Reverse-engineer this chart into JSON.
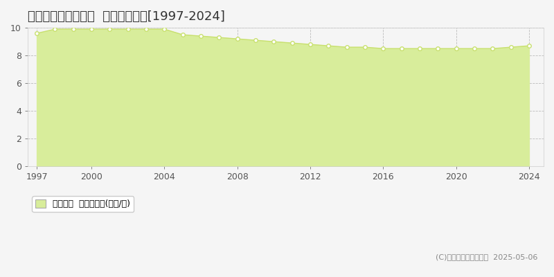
{
  "title": "東諸県郡国富町木脇  基準地価推移[1997-2024]",
  "years": [
    1997,
    1998,
    1999,
    2000,
    2001,
    2002,
    2003,
    2004,
    2005,
    2006,
    2007,
    2008,
    2009,
    2010,
    2011,
    2012,
    2013,
    2014,
    2015,
    2016,
    2017,
    2018,
    2019,
    2020,
    2021,
    2022,
    2023,
    2024
  ],
  "values": [
    9.6,
    9.9,
    9.9,
    9.9,
    9.9,
    9.9,
    9.9,
    9.9,
    9.5,
    9.4,
    9.3,
    9.2,
    9.1,
    9.0,
    8.9,
    8.8,
    8.7,
    8.6,
    8.6,
    8.5,
    8.5,
    8.5,
    8.5,
    8.5,
    8.5,
    8.5,
    8.6,
    8.7
  ],
  "ylim": [
    0,
    10
  ],
  "yticks": [
    0,
    2,
    4,
    6,
    8,
    10
  ],
  "xticks": [
    1997,
    2000,
    2004,
    2008,
    2012,
    2016,
    2020,
    2024
  ],
  "line_color": "#c8e06e",
  "fill_color": "#d8ed9b",
  "marker_color": "#ffffff",
  "marker_edge_color": "#c8e06e",
  "grid_color": "#bbbbbb",
  "background_color": "#f5f5f5",
  "plot_bg_color": "#f5f5f5",
  "legend_label": "基準地価  平均坪単価(万円/坪)",
  "copyright_text": "(C)土地価格ドットコム  2025-05-06",
  "title_fontsize": 13,
  "axis_fontsize": 9,
  "legend_fontsize": 9
}
